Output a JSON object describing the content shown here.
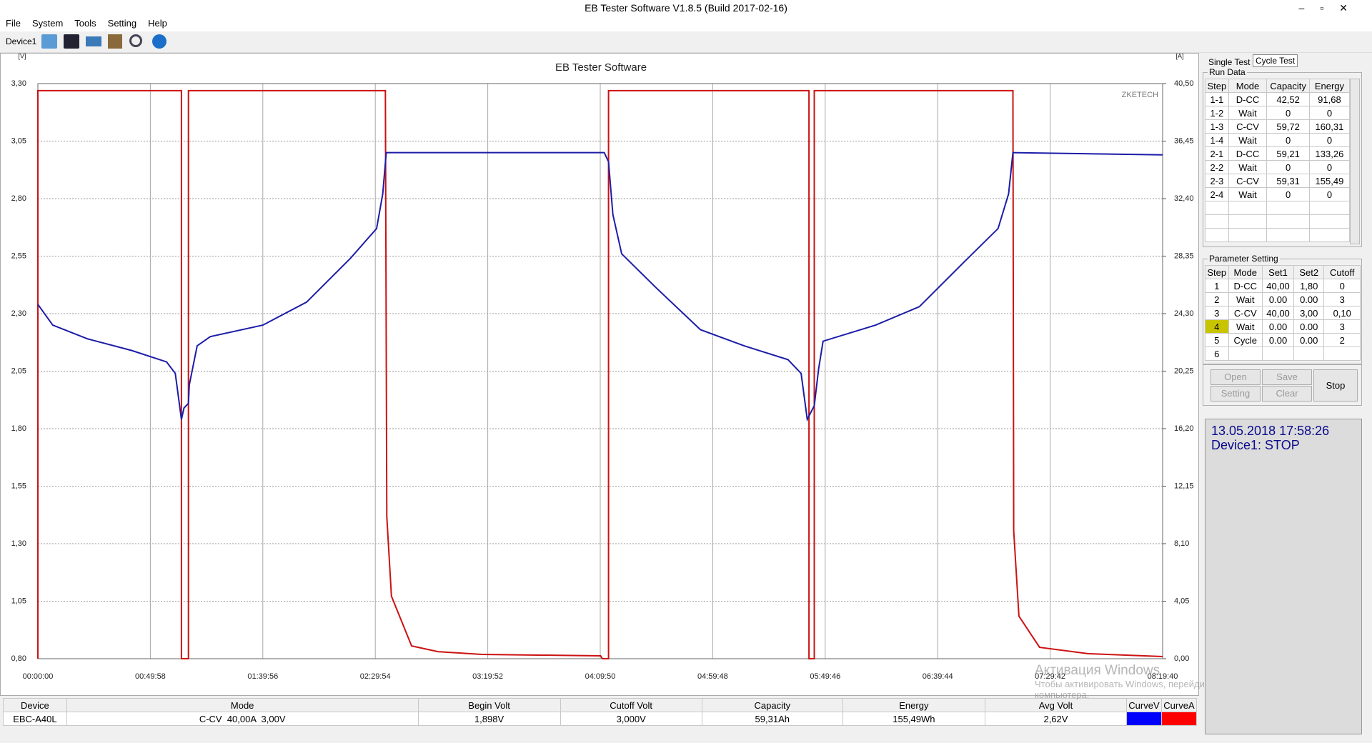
{
  "window": {
    "title": "EB Tester Software V1.8.5 (Build 2017-02-16)"
  },
  "menu": [
    "File",
    "System",
    "Tools",
    "Setting",
    "Help"
  ],
  "toolbar": {
    "device": "Device1"
  },
  "chart_data": {
    "type": "line",
    "title": "EB Tester Software",
    "y_label": "[V]",
    "y2_label": "[A]",
    "annotation": "ZKETECH",
    "grid": true,
    "xlim": [
      0,
      29980
    ],
    "xticks": [
      {
        "value": 0,
        "label": "00:00:00"
      },
      {
        "value": 2998,
        "label": "00:49:58"
      },
      {
        "value": 5996,
        "label": "01:39:56"
      },
      {
        "value": 8994,
        "label": "02:29:54"
      },
      {
        "value": 11992,
        "label": "03:19:52"
      },
      {
        "value": 14990,
        "label": "04:09:50"
      },
      {
        "value": 17988,
        "label": "04:59:48"
      },
      {
        "value": 20986,
        "label": "05:49:46"
      },
      {
        "value": 23984,
        "label": "06:39:44"
      },
      {
        "value": 26982,
        "label": "07:29:42"
      },
      {
        "value": 29980,
        "label": "08:19:40"
      }
    ],
    "ylim": [
      0.8,
      3.3
    ],
    "yticks": [
      {
        "value": 0.8,
        "label": "0,80"
      },
      {
        "value": 1.05,
        "label": "1,05"
      },
      {
        "value": 1.3,
        "label": "1,30"
      },
      {
        "value": 1.55,
        "label": "1,55"
      },
      {
        "value": 1.8,
        "label": "1,80"
      },
      {
        "value": 2.05,
        "label": "2,05"
      },
      {
        "value": 2.3,
        "label": "2,30"
      },
      {
        "value": 2.55,
        "label": "2,55"
      },
      {
        "value": 2.8,
        "label": "2,80"
      },
      {
        "value": 3.05,
        "label": "3,05"
      },
      {
        "value": 3.3,
        "label": "3,30"
      }
    ],
    "y2lim": [
      0,
      40.5
    ],
    "y2ticks": [
      {
        "value": 0,
        "label": "0,00"
      },
      {
        "value": 4.05,
        "label": "4,05"
      },
      {
        "value": 8.1,
        "label": "8,10"
      },
      {
        "value": 12.15,
        "label": "12,15"
      },
      {
        "value": 16.2,
        "label": "16,20"
      },
      {
        "value": 20.25,
        "label": "20,25"
      },
      {
        "value": 24.3,
        "label": "24,30"
      },
      {
        "value": 28.35,
        "label": "28,35"
      },
      {
        "value": 32.4,
        "label": "32,40"
      },
      {
        "value": 36.45,
        "label": "36,45"
      },
      {
        "value": 40.5,
        "label": "40,50"
      }
    ],
    "series": [
      {
        "name": "CurveV",
        "color": "#0000ff",
        "line_color": "#1c1ca8",
        "x": [
          0,
          397,
          1330,
          2496,
          3430,
          3663,
          3826,
          3896,
          4013,
          4036,
          4246,
          4596,
          5996,
          7162,
          8329,
          9029,
          9192,
          9285,
          15096,
          15211,
          15328,
          15561,
          16494,
          17661,
          18827,
          19994,
          20344,
          20508,
          20694,
          20811,
          20928,
          22328,
          23494,
          24661,
          25594,
          25874,
          25990,
          29980
        ],
        "values": [
          2.34,
          2.25,
          2.19,
          2.14,
          2.09,
          2.04,
          1.84,
          1.89,
          1.91,
          1.99,
          2.16,
          2.2,
          2.25,
          2.35,
          2.54,
          2.67,
          2.82,
          3.0,
          3.0,
          2.96,
          2.73,
          2.56,
          2.41,
          2.23,
          2.16,
          2.1,
          2.04,
          1.84,
          1.9,
          2.06,
          2.18,
          2.25,
          2.33,
          2.52,
          2.67,
          2.82,
          3.0,
          2.99
        ]
      },
      {
        "name": "CurveA",
        "color": "#ff0000",
        "line_color": "#cc1111",
        "axis": "y2",
        "x": [
          0,
          0,
          3826,
          3826,
          4013,
          4013,
          9262,
          9300,
          9425,
          9962,
          10662,
          11828,
          15000,
          15048,
          15211,
          15211,
          20553,
          20553,
          20694,
          20694,
          25990,
          26010,
          26150,
          26700,
          28000,
          29980
        ],
        "values": [
          0,
          40,
          40,
          0,
          0,
          40,
          40,
          10,
          4.4,
          0.9,
          0.5,
          0.3,
          0.2,
          0,
          0,
          40,
          40,
          0,
          0,
          40,
          40,
          9,
          3,
          0.8,
          0.35,
          0.15
        ]
      }
    ]
  },
  "right_panel": {
    "tabs": [
      "Single Test",
      "Cycle Test"
    ],
    "run_data": {
      "title": "Run Data",
      "columns": [
        "Step",
        "Mode",
        "Capacity",
        "Energy"
      ],
      "rows": [
        [
          "1-1",
          "D-CC",
          "42,52",
          "91,68"
        ],
        [
          "1-2",
          "Wait",
          "0",
          "0"
        ],
        [
          "1-3",
          "C-CV",
          "59,72",
          "160,31"
        ],
        [
          "1-4",
          "Wait",
          "0",
          "0"
        ],
        [
          "2-1",
          "D-CC",
          "59,21",
          "133,26"
        ],
        [
          "2-2",
          "Wait",
          "0",
          "0"
        ],
        [
          "2-3",
          "C-CV",
          "59,31",
          "155,49"
        ],
        [
          "2-4",
          "Wait",
          "0",
          "0"
        ]
      ]
    },
    "parameter_setting": {
      "title": "Parameter Setting",
      "columns": [
        "Step",
        "Mode",
        "Set1",
        "Set2",
        "Cutoff"
      ],
      "rows": [
        [
          "1",
          "D-CC",
          "40,00",
          "1,80",
          "0"
        ],
        [
          "2",
          "Wait",
          "0.00",
          "0.00",
          "3"
        ],
        [
          "3",
          "C-CV",
          "40,00",
          "3,00",
          "0,10"
        ],
        [
          "4",
          "Wait",
          "0.00",
          "0.00",
          "3"
        ],
        [
          "5",
          "Cycle",
          "0.00",
          "0.00",
          "2"
        ],
        [
          "6"
        ]
      ]
    },
    "buttons": [
      "Open",
      "Save",
      "Setting",
      "Clear",
      "Stop"
    ],
    "status": [
      "13.05.2018 17:58:26",
      "Device1: STOP"
    ]
  },
  "summary_table": {
    "columns": [
      "Device",
      "Mode",
      "Begin Volt",
      "Cutoff Volt",
      "Capacity",
      "Energy",
      "Avg Volt"
    ],
    "row": [
      "EBC-A40L",
      "C-CV  40,00A  3,00V",
      "1,898V",
      "3,000V",
      "59,31Ah",
      "155,49Wh",
      "2,62V"
    ]
  },
  "watermark": [
    "Активация Windows",
    "Чтобы активировать Windows, перейдите к параметрам",
    "компьютера."
  ]
}
